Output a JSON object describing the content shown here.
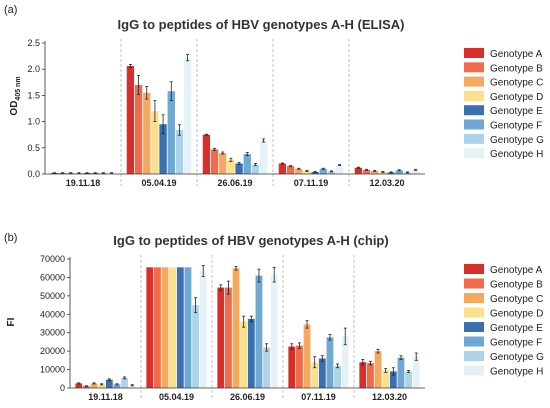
{
  "chart_data": [
    {
      "type": "bar",
      "panel": "(a)",
      "title": "IgG to peptides of HBV genotypes A-H (ELISA)",
      "ylabel_main": "OD",
      "ylabel_sub": "405 nm",
      "ylim": [
        0,
        2.5
      ],
      "yticks": [
        "0.0",
        "0.5",
        "1.0",
        "1.5",
        "2.0",
        "2.5"
      ],
      "categories": [
        "19.11.18",
        "05.04.19",
        "26.06.19",
        "07.11.19",
        "12.03.20"
      ],
      "series": [
        {
          "name": "Genotype A",
          "values": [
            0.02,
            2.06,
            0.75,
            0.2,
            0.12
          ]
        },
        {
          "name": "Genotype B",
          "values": [
            0.02,
            1.7,
            0.47,
            0.15,
            0.08
          ]
        },
        {
          "name": "Genotype C",
          "values": [
            0.02,
            1.55,
            0.4,
            0.1,
            0.06
          ]
        },
        {
          "name": "Genotype D",
          "values": [
            0.02,
            1.2,
            0.27,
            0.06,
            0.04
          ]
        },
        {
          "name": "Genotype E",
          "values": [
            0.02,
            0.95,
            0.2,
            0.04,
            0.03
          ]
        },
        {
          "name": "Genotype F",
          "values": [
            0.02,
            1.58,
            0.38,
            0.1,
            0.07
          ]
        },
        {
          "name": "Genotype G",
          "values": [
            0.02,
            0.84,
            0.18,
            0.05,
            0.03
          ]
        },
        {
          "name": "Genotype H",
          "values": [
            0.02,
            2.22,
            0.64,
            0.17,
            0.08
          ]
        }
      ],
      "errors": [
        [
          0.005,
          0.03,
          0.01,
          0.01,
          0.01
        ],
        [
          0.005,
          0.18,
          0.02,
          0.01,
          0.01
        ],
        [
          0.005,
          0.12,
          0.02,
          0.01,
          0.01
        ],
        [
          0.005,
          0.2,
          0.03,
          0.01,
          0.01
        ],
        [
          0.005,
          0.18,
          0.02,
          0.01,
          0.01
        ],
        [
          0.005,
          0.18,
          0.03,
          0.01,
          0.01
        ],
        [
          0.005,
          0.1,
          0.02,
          0.01,
          0.01
        ],
        [
          0.005,
          0.06,
          0.03,
          0.01,
          0.01
        ]
      ],
      "legend_position": "right",
      "separators": "dashed-vertical"
    },
    {
      "type": "bar",
      "panel": "(b)",
      "title": "IgG to peptides of HBV genotypes A-H (chip)",
      "ylabel_main": "FI",
      "ylabel_sub": "",
      "ylim": [
        0,
        70000
      ],
      "yticks": [
        "0",
        "10000",
        "20000",
        "30000",
        "40000",
        "50000",
        "60000",
        "70000"
      ],
      "categories": [
        "19.11.18",
        "05.04.19",
        "26.06.19",
        "07.11.19",
        "12.03.20"
      ],
      "series": [
        {
          "name": "Genotype A",
          "values": [
            2500,
            65500,
            54500,
            22500,
            14000
          ]
        },
        {
          "name": "Genotype B",
          "values": [
            1000,
            65500,
            54500,
            23000,
            13500
          ]
        },
        {
          "name": "Genotype C",
          "values": [
            2500,
            65500,
            65000,
            34500,
            20000
          ]
        },
        {
          "name": "Genotype D",
          "values": [
            2000,
            65500,
            36000,
            14000,
            9500
          ]
        },
        {
          "name": "Genotype E",
          "values": [
            4500,
            65500,
            37500,
            16000,
            9000
          ]
        },
        {
          "name": "Genotype F",
          "values": [
            2000,
            65500,
            61000,
            27500,
            16500
          ]
        },
        {
          "name": "Genotype G",
          "values": [
            5500,
            45000,
            22000,
            12000,
            9000
          ]
        },
        {
          "name": "Genotype H",
          "values": [
            1500,
            63500,
            61500,
            28000,
            17000
          ]
        }
      ],
      "errors": [
        [
          300,
          0,
          1500,
          1500,
          1500
        ],
        [
          200,
          0,
          3500,
          1500,
          1000
        ],
        [
          300,
          0,
          1000,
          2000,
          1000
        ],
        [
          300,
          0,
          3000,
          3000,
          1000
        ],
        [
          500,
          0,
          1500,
          1500,
          2000
        ],
        [
          300,
          0,
          3500,
          1500,
          1000
        ],
        [
          500,
          4000,
          2000,
          1000,
          500
        ],
        [
          300,
          3000,
          4000,
          4500,
          2000
        ]
      ],
      "legend_position": "right",
      "separators": "dashed-vertical"
    }
  ],
  "colors": [
    "#d7302b",
    "#ef6b4a",
    "#f5a95e",
    "#fbe08c",
    "#3a6fb0",
    "#6fa8d3",
    "#acd3e8",
    "#e4f2f8"
  ]
}
